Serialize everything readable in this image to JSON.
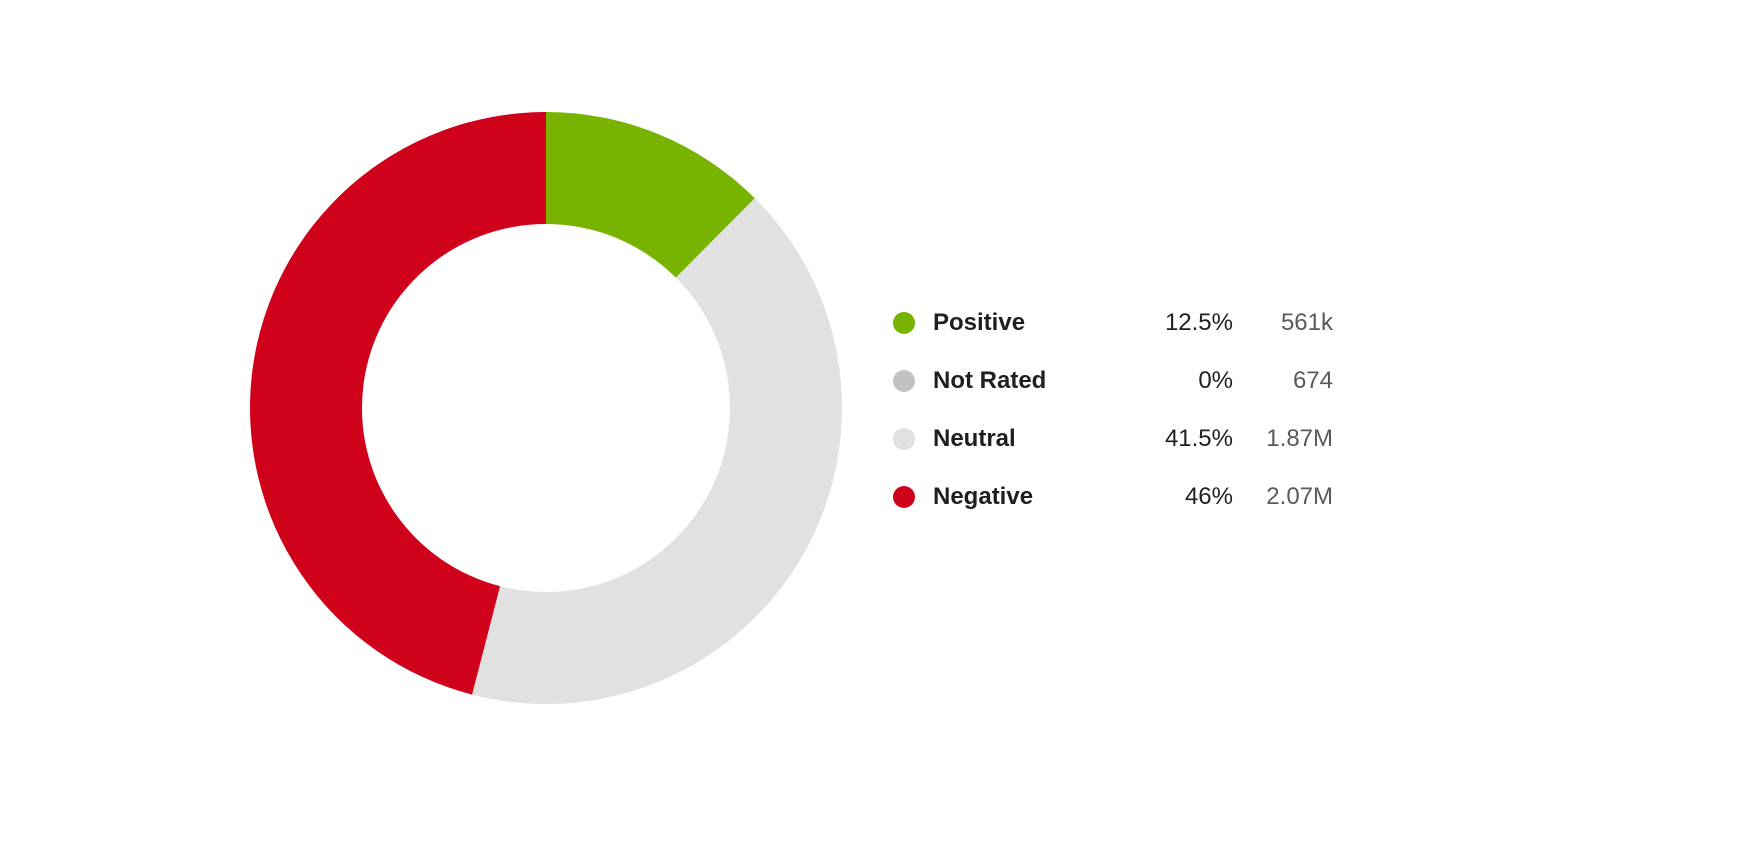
{
  "chart_data": {
    "type": "pie",
    "variant": "donut",
    "title": "",
    "slices": [
      {
        "label": "Positive",
        "percent_label": "12.5%",
        "count_label": "561k",
        "value": 561000,
        "color": "#77b300"
      },
      {
        "label": "Not Rated",
        "percent_label": "0%",
        "count_label": "674",
        "value": 674,
        "color": "#c2c2c2"
      },
      {
        "label": "Neutral",
        "percent_label": "41.5%",
        "count_label": "1.87M",
        "value": 1870000,
        "color": "#e1e1e1"
      },
      {
        "label": "Negative",
        "percent_label": "46%",
        "count_label": "2.07M",
        "value": 2070000,
        "color": "#d0021b"
      }
    ],
    "legend_position": "right"
  }
}
